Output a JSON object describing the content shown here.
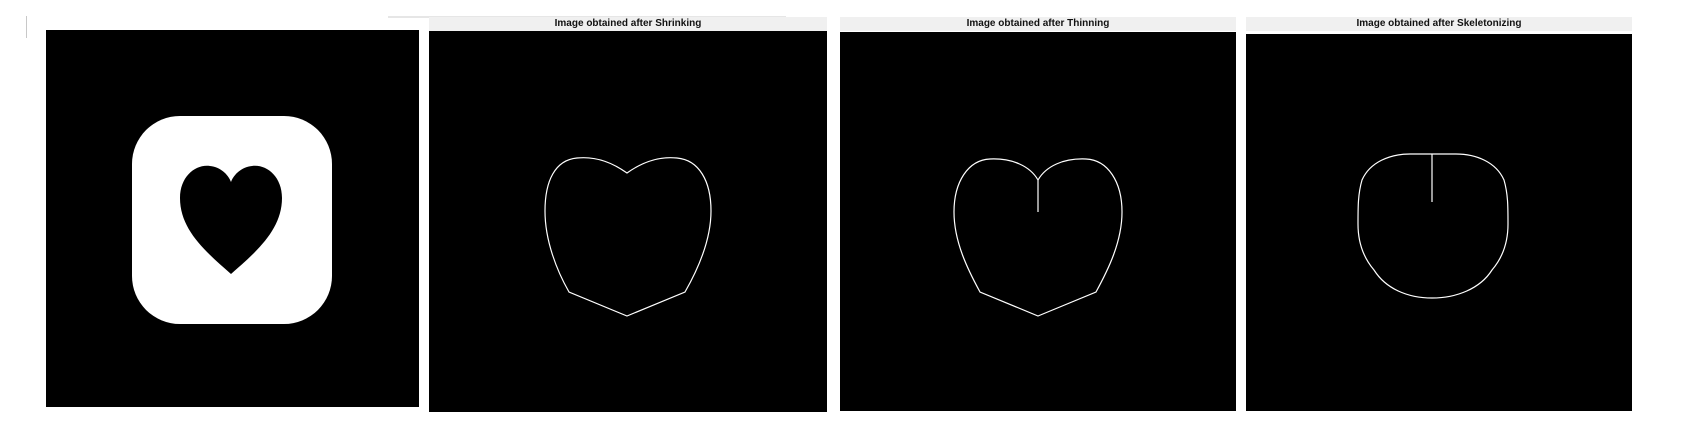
{
  "panels": [
    {
      "title": "",
      "image": "original-heart-icon"
    },
    {
      "title": "Image obtained after Shrinking",
      "image": "shrunk-heart-outline"
    },
    {
      "title": "Image obtained after Thinning",
      "image": "thinned-heart-outline"
    },
    {
      "title": "Image obtained after Skeletonizing",
      "image": "skeleton-heart-outline"
    }
  ],
  "colors": {
    "background": "#000000",
    "foreground": "#ffffff",
    "title_bar": "#f0f0f0"
  }
}
